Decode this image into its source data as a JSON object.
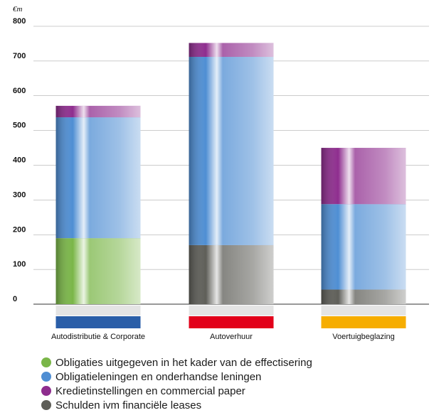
{
  "chart_data": {
    "type": "bar",
    "stacked": true,
    "title": "",
    "ylabel": "€m",
    "ylim": [
      0,
      800
    ],
    "yticks": [
      0,
      100,
      200,
      300,
      400,
      500,
      600,
      700,
      800
    ],
    "grid": true,
    "categories": [
      "Autodistributie & Corporate",
      "Autoverhuur",
      "Voertuigbeglazing"
    ],
    "category_colors": [
      "#2a5ea8",
      "#e2001a",
      "#f6ad00"
    ],
    "series": [
      {
        "name": "Schulden ivm financiële leases",
        "color": "#5e5e58",
        "values": [
          0,
          170,
          42
        ]
      },
      {
        "name": "Obligaties uitgegeven in het kader van de effectisering",
        "color": "#7ab648",
        "values": [
          190,
          0,
          0
        ]
      },
      {
        "name": "Obligatieleningen en onderhandse leningen",
        "color": "#4f8ed3",
        "values": [
          348,
          542,
          246
        ]
      },
      {
        "name": "Kredietinstellingen en commercial paper",
        "color": "#8e2d8e",
        "values": [
          33,
          40,
          162
        ]
      }
    ]
  },
  "legend": {
    "items": [
      {
        "label": "Obligaties uitgegeven in het kader van de effectisering",
        "color": "#7ab648"
      },
      {
        "label": "Obligatieleningen en onderhandse leningen",
        "color": "#4f8ed3"
      },
      {
        "label": "Kredietinstellingen en commercial paper",
        "color": "#8e2d8e"
      },
      {
        "label": "Schulden ivm financiële leases",
        "color": "#5e5e58"
      }
    ]
  }
}
